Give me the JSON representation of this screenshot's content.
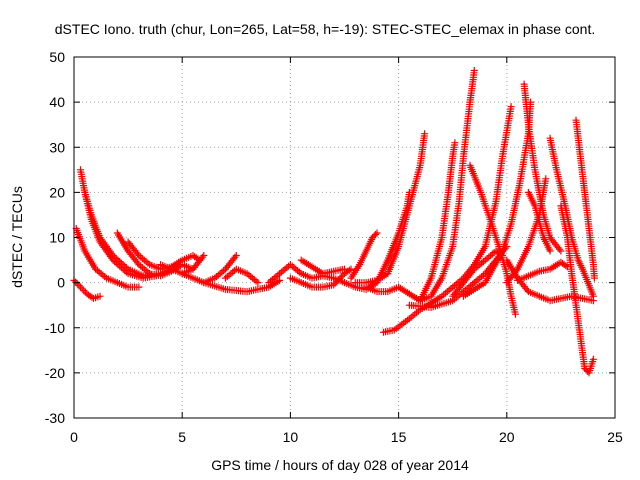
{
  "chart_data": {
    "type": "scatter",
    "title": "dSTEC Iono. truth (chur, Lon=265, Lat=58, h=-19): STEC-STEC_elemax in phase cont.",
    "xlabel": "GPS time / hours of day 028 of year 2014",
    "ylabel": "dSTEC  / TECUs",
    "xlim": [
      0,
      25
    ],
    "ylim": [
      -30,
      50
    ],
    "xticks": [
      0,
      5,
      10,
      15,
      20,
      25
    ],
    "yticks": [
      -30,
      -20,
      -10,
      0,
      10,
      20,
      30,
      40,
      50
    ],
    "grid": true,
    "marker_color": "#ff0000",
    "marker": "plus",
    "series": [
      {
        "points": [
          [
            0.0,
            0.5
          ],
          [
            0.3,
            -1.0
          ],
          [
            0.6,
            -2.5
          ],
          [
            0.9,
            -3.5
          ],
          [
            1.2,
            -3.0
          ]
        ]
      },
      {
        "points": [
          [
            0.1,
            12.0
          ],
          [
            0.5,
            7.0
          ],
          [
            1.0,
            3.0
          ],
          [
            1.5,
            1.0
          ],
          [
            2.0,
            0.0
          ],
          [
            2.5,
            -1.0
          ],
          [
            3.0,
            -1.0
          ]
        ]
      },
      {
        "points": [
          [
            0.3,
            25.0
          ],
          [
            0.5,
            20.0
          ],
          [
            0.8,
            14.0
          ],
          [
            1.2,
            9.0
          ],
          [
            1.8,
            5.0
          ],
          [
            2.5,
            2.0
          ],
          [
            3.2,
            1.0
          ],
          [
            3.8,
            1.5
          ]
        ]
      },
      {
        "points": [
          [
            0.5,
            20.0
          ],
          [
            0.8,
            15.0
          ],
          [
            1.2,
            10.0
          ],
          [
            1.8,
            6.0
          ],
          [
            2.5,
            3.0
          ],
          [
            3.2,
            1.5
          ],
          [
            4.0,
            2.0
          ],
          [
            4.5,
            3.0
          ]
        ]
      },
      {
        "points": [
          [
            2.0,
            11.0
          ],
          [
            2.5,
            7.0
          ],
          [
            3.0,
            4.0
          ],
          [
            3.5,
            2.0
          ],
          [
            4.0,
            1.5
          ],
          [
            4.5,
            2.5
          ],
          [
            5.0,
            4.0
          ],
          [
            5.5,
            3.0
          ]
        ]
      },
      {
        "points": [
          [
            2.5,
            9.0
          ],
          [
            3.0,
            6.0
          ],
          [
            3.5,
            4.0
          ],
          [
            4.0,
            3.0
          ],
          [
            4.5,
            3.5
          ],
          [
            5.0,
            5.0
          ],
          [
            5.5,
            6.0
          ],
          [
            5.8,
            5.0
          ]
        ]
      },
      {
        "points": [
          [
            4.0,
            4.0
          ],
          [
            4.5,
            3.0
          ],
          [
            5.0,
            2.0
          ],
          [
            5.5,
            3.0
          ],
          [
            6.0,
            6.0
          ]
        ]
      },
      {
        "points": [
          [
            5.0,
            2.0
          ],
          [
            5.5,
            1.0
          ],
          [
            6.0,
            0.0
          ],
          [
            6.5,
            1.0
          ],
          [
            7.0,
            3.0
          ],
          [
            7.5,
            6.0
          ]
        ]
      },
      {
        "points": [
          [
            6.0,
            0.0
          ],
          [
            7.0,
            -1.5
          ],
          [
            8.0,
            -2.0
          ],
          [
            9.0,
            -1.0
          ],
          [
            9.5,
            0.5
          ]
        ]
      },
      {
        "points": [
          [
            7.0,
            1.0
          ],
          [
            7.5,
            3.0
          ],
          [
            8.0,
            2.0
          ],
          [
            8.5,
            0.0
          ]
        ]
      },
      {
        "points": [
          [
            9.0,
            0.0
          ],
          [
            9.5,
            2.0
          ],
          [
            10.0,
            4.0
          ],
          [
            10.5,
            2.0
          ],
          [
            11.0,
            1.0
          ],
          [
            11.5,
            1.5
          ],
          [
            12.0,
            1.0
          ],
          [
            12.5,
            0.0
          ]
        ]
      },
      {
        "points": [
          [
            10.0,
            1.0
          ],
          [
            10.5,
            0.0
          ],
          [
            11.0,
            -1.0
          ],
          [
            11.5,
            -1.0
          ],
          [
            12.0,
            -0.5
          ],
          [
            12.5,
            2.0
          ],
          [
            12.8,
            3.0
          ]
        ]
      },
      {
        "points": [
          [
            10.5,
            5.0
          ],
          [
            11.0,
            3.5
          ],
          [
            11.5,
            2.0
          ],
          [
            12.0,
            2.5
          ],
          [
            12.5,
            3.0
          ]
        ]
      },
      {
        "points": [
          [
            12.8,
            1.0
          ],
          [
            13.2,
            4.0
          ],
          [
            13.5,
            7.0
          ],
          [
            13.8,
            10.0
          ],
          [
            14.0,
            11.0
          ]
        ]
      },
      {
        "points": [
          [
            12.5,
            0.0
          ],
          [
            13.0,
            -1.0
          ],
          [
            13.5,
            -1.5
          ],
          [
            14.0,
            0.0
          ],
          [
            14.5,
            5.0
          ],
          [
            15.0,
            11.0
          ],
          [
            15.4,
            17.0
          ],
          [
            15.5,
            20.0
          ]
        ]
      },
      {
        "points": [
          [
            13.0,
            0.0
          ],
          [
            13.5,
            0.0
          ],
          [
            14.0,
            0.5
          ],
          [
            14.5,
            2.0
          ],
          [
            15.0,
            8.0
          ],
          [
            15.5,
            17.0
          ],
          [
            16.0,
            26.0
          ],
          [
            16.2,
            33.0
          ]
        ]
      },
      {
        "points": [
          [
            13.5,
            -1.0
          ],
          [
            14.0,
            -2.0
          ],
          [
            14.5,
            -2.0
          ],
          [
            15.0,
            -1.0
          ],
          [
            15.5,
            -2.5
          ],
          [
            16.0,
            -4.0
          ],
          [
            16.5,
            -3.0
          ],
          [
            17.0,
            1.0
          ],
          [
            17.5,
            8.0
          ],
          [
            17.8,
            18.0
          ],
          [
            18.0,
            28.0
          ],
          [
            18.3,
            40.0
          ],
          [
            18.5,
            47.0
          ]
        ]
      },
      {
        "points": [
          [
            14.3,
            -11.0
          ],
          [
            14.8,
            -10.5
          ],
          [
            15.5,
            -8.0
          ],
          [
            16.0,
            -6.0
          ],
          [
            17.0,
            -3.0
          ],
          [
            18.0,
            1.0
          ],
          [
            18.5,
            4.0
          ],
          [
            19.0,
            8.0
          ],
          [
            19.5,
            18.0
          ],
          [
            19.8,
            28.0
          ],
          [
            20.2,
            39.0
          ]
        ]
      },
      {
        "points": [
          [
            15.5,
            -5.0
          ],
          [
            16.5,
            -5.5
          ],
          [
            17.5,
            -4.0
          ],
          [
            18.0,
            -2.0
          ],
          [
            19.0,
            2.0
          ],
          [
            19.5,
            5.0
          ],
          [
            20.0,
            8.0
          ]
        ]
      },
      {
        "points": [
          [
            16.0,
            -4.0
          ],
          [
            16.5,
            1.0
          ],
          [
            17.0,
            10.0
          ],
          [
            17.3,
            20.0
          ],
          [
            17.5,
            28.0
          ],
          [
            17.6,
            31.0
          ]
        ]
      },
      {
        "points": [
          [
            17.5,
            -3.0
          ],
          [
            18.0,
            0.0
          ],
          [
            18.5,
            3.0
          ],
          [
            19.0,
            5.0
          ],
          [
            19.5,
            7.0
          ],
          [
            19.8,
            6.0
          ]
        ]
      },
      {
        "points": [
          [
            18.3,
            26.0
          ],
          [
            18.8,
            20.0
          ],
          [
            19.3,
            13.0
          ],
          [
            19.7,
            7.0
          ],
          [
            20.0,
            2.0
          ],
          [
            20.2,
            -3.0
          ],
          [
            20.4,
            -7.0
          ]
        ]
      },
      {
        "points": [
          [
            18.0,
            -3.0
          ],
          [
            19.0,
            0.0
          ],
          [
            19.8,
            7.0
          ],
          [
            20.2,
            13.0
          ],
          [
            20.6,
            22.0
          ],
          [
            21.0,
            33.0
          ],
          [
            21.1,
            40.0
          ]
        ]
      },
      {
        "points": [
          [
            20.0,
            5.0
          ],
          [
            20.5,
            1.0
          ],
          [
            21.0,
            -2.0
          ],
          [
            22.0,
            -4.0
          ],
          [
            23.0,
            -3.0
          ],
          [
            24.0,
            -4.0
          ]
        ]
      },
      {
        "points": [
          [
            20.0,
            0.0
          ],
          [
            20.5,
            3.0
          ],
          [
            21.0,
            8.0
          ],
          [
            21.5,
            15.0
          ],
          [
            21.8,
            23.0
          ]
        ]
      },
      {
        "points": [
          [
            20.8,
            44.0
          ],
          [
            21.0,
            35.0
          ],
          [
            21.3,
            25.0
          ],
          [
            21.7,
            15.0
          ],
          [
            22.0,
            10.0
          ],
          [
            22.5,
            7.0
          ]
        ]
      },
      {
        "points": [
          [
            20.5,
            0.5
          ],
          [
            21.0,
            1.5
          ],
          [
            21.5,
            2.5
          ],
          [
            22.0,
            3.0
          ],
          [
            22.5,
            4.5
          ],
          [
            22.8,
            3.5
          ]
        ]
      },
      {
        "points": [
          [
            21.0,
            20.0
          ],
          [
            21.3,
            17.0
          ],
          [
            21.7,
            10.0
          ],
          [
            22.0,
            7.0
          ]
        ]
      },
      {
        "points": [
          [
            22.0,
            32.0
          ],
          [
            22.3,
            25.0
          ],
          [
            22.7,
            17.0
          ],
          [
            23.0,
            10.0
          ],
          [
            23.3,
            5.0
          ],
          [
            23.5,
            3.0
          ],
          [
            24.0,
            -3.0
          ]
        ]
      },
      {
        "points": [
          [
            22.5,
            17.0
          ],
          [
            22.8,
            10.0
          ],
          [
            23.0,
            2.0
          ],
          [
            23.2,
            -5.0
          ],
          [
            23.4,
            -12.0
          ],
          [
            23.6,
            -19.0
          ],
          [
            23.8,
            -20.0
          ],
          [
            24.0,
            -17.0
          ]
        ]
      },
      {
        "points": [
          [
            23.2,
            36.0
          ],
          [
            23.4,
            28.0
          ],
          [
            23.6,
            20.0
          ],
          [
            23.8,
            12.0
          ],
          [
            24.0,
            4.0
          ],
          [
            24.05,
            1.0
          ]
        ]
      }
    ]
  }
}
